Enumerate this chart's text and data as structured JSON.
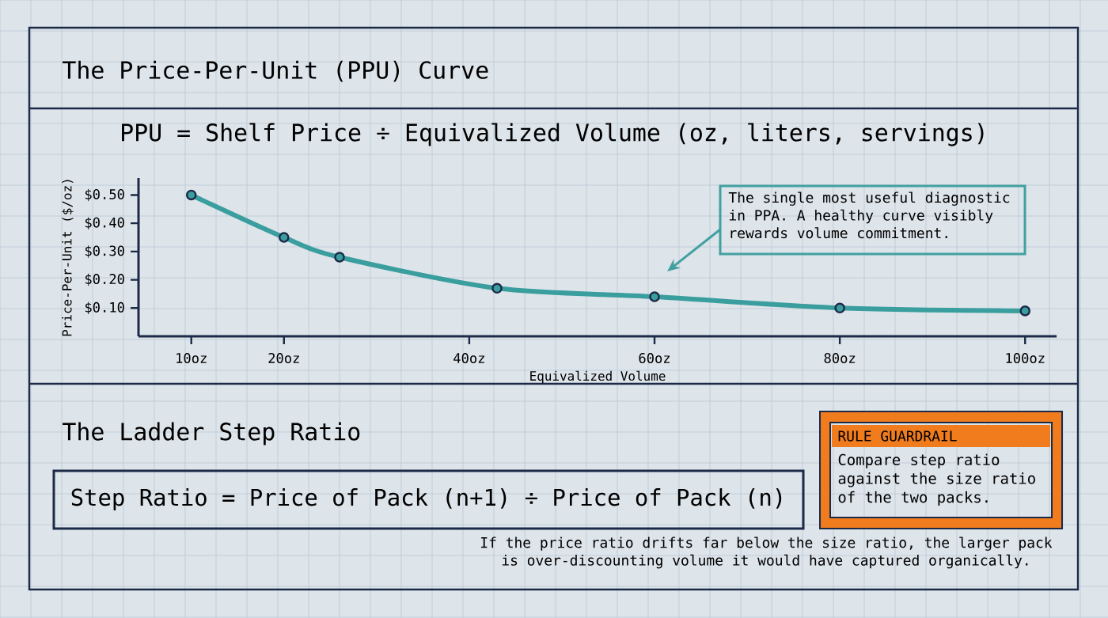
{
  "chart_data": {
    "type": "line",
    "title": "The Price-Per-Unit (PPU) Curve",
    "subtitle": "PPU = Shelf Price ÷ Equivalized Volume (oz, liters, servings)",
    "xlabel": "Equivalized Volume",
    "ylabel": "Price-Per-Unit ($/oz)",
    "x": [
      10,
      20,
      26,
      43,
      60,
      80,
      100
    ],
    "series": [
      {
        "color": "#3a9e9e",
        "values": [
          0.5,
          0.35,
          0.28,
          0.17,
          0.14,
          0.1,
          0.09
        ]
      }
    ],
    "xlim": [
      4.3,
      103.4
    ],
    "ylim": [
      0,
      0.56
    ],
    "xticks": [
      {
        "value": 10,
        "label": "10oz"
      },
      {
        "value": 20,
        "label": "20oz"
      },
      {
        "value": 40,
        "label": "40oz"
      },
      {
        "value": 60,
        "label": "60oz"
      },
      {
        "value": 80,
        "label": "80oz"
      },
      {
        "value": 100,
        "label": "100oz"
      }
    ],
    "yticks": [
      {
        "value": 0.1,
        "label": "$0.10"
      },
      {
        "value": 0.2,
        "label": "$0.20"
      },
      {
        "value": 0.3,
        "label": "$0.30"
      },
      {
        "value": 0.4,
        "label": "$0.40"
      },
      {
        "value": 0.5,
        "label": "$0.50"
      }
    ],
    "marker": "circle",
    "line_style": "solid",
    "annotations": [
      "The single most useful diagnostic in PPA. A healthy curve visibly rewards volume commitment.",
      "The Ladder Step Ratio",
      "Step Ratio = Price of Pack (n+1) ÷ Price of Pack (n)",
      "RULE GUARDRAIL",
      "Compare step ratio against the size ratio of the two packs.",
      "If the price ratio drifts far below the size ratio, the larger pack is over-discounting volume it would have captured organically."
    ]
  }
}
